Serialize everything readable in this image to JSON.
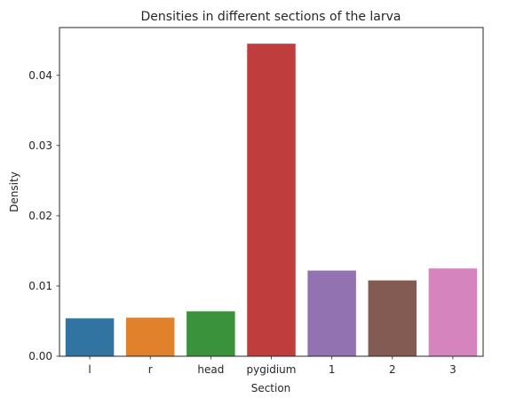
{
  "chart_data": {
    "type": "bar",
    "title": "Densities in different sections of the larva",
    "xlabel": "Section",
    "ylabel": "Density",
    "categories": [
      "l",
      "r",
      "head",
      "pygidium",
      "1",
      "2",
      "3"
    ],
    "values": [
      0.0054,
      0.0055,
      0.0064,
      0.0445,
      0.0122,
      0.0108,
      0.0125
    ],
    "colors": [
      "#3274a1",
      "#e1812c",
      "#3a923a",
      "#c03d3e",
      "#9372b2",
      "#845b53",
      "#d684bd"
    ],
    "ylim": [
      0,
      0.0468
    ],
    "yticks": [
      {
        "value": 0.0,
        "label": "0.00"
      },
      {
        "value": 0.01,
        "label": "0.01"
      },
      {
        "value": 0.02,
        "label": "0.02"
      },
      {
        "value": 0.03,
        "label": "0.03"
      },
      {
        "value": 0.04,
        "label": "0.04"
      }
    ],
    "grid": false,
    "legend": "none"
  }
}
